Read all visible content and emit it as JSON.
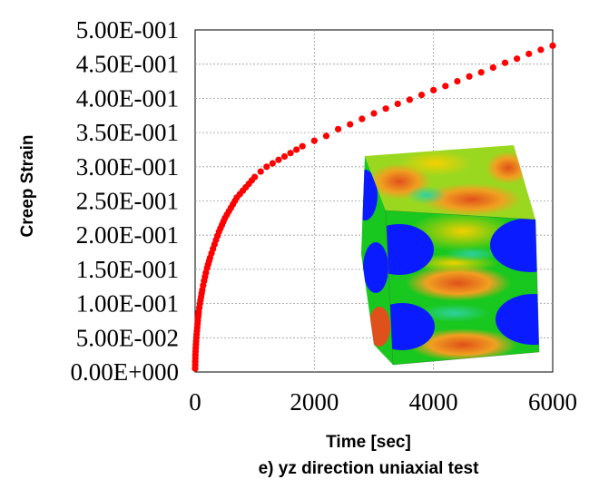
{
  "chart_data": {
    "type": "scatter",
    "title": "",
    "caption": "e) yz direction uniaxial test",
    "xlabel": "Time [sec]",
    "ylabel": "Creep Strain",
    "xlim": [
      0,
      6000
    ],
    "ylim": [
      0,
      0.5
    ],
    "x_ticks": [
      0,
      2000,
      4000,
      6000
    ],
    "x_tick_labels": [
      "0",
      "2000",
      "4000",
      "6000"
    ],
    "y_ticks": [
      0,
      0.05,
      0.1,
      0.15,
      0.2,
      0.25,
      0.3,
      0.35,
      0.4,
      0.45,
      0.5
    ],
    "y_tick_labels": [
      "0.00E+000",
      "5.00E-002",
      "1.00E-001",
      "1.50E-001",
      "2.00E-001",
      "2.50E-001",
      "3.00E-001",
      "3.50E-001",
      "4.00E-001",
      "4.50E-001",
      "5.00E-001"
    ],
    "grid": true,
    "legend": "none",
    "marker_color": "#ff0000",
    "series": [
      {
        "x": [
          0,
          2,
          5,
          10,
          20,
          30,
          40,
          50,
          60,
          80,
          100,
          120,
          150,
          180,
          200,
          250,
          300,
          350,
          400,
          450,
          500,
          600,
          700,
          800,
          900,
          1000,
          1100,
          1200,
          1300,
          1400,
          1500,
          1600,
          1700,
          1800,
          2000,
          2200,
          2400,
          2600,
          2800,
          3000,
          3200,
          3400,
          3600,
          3800,
          4000,
          4200,
          4400,
          4600,
          4800,
          5000,
          5200,
          5400,
          5600,
          5800,
          6000
        ],
        "values": [
          0.005,
          0.015,
          0.025,
          0.035,
          0.05,
          0.06,
          0.07,
          0.08,
          0.088,
          0.1,
          0.11,
          0.12,
          0.133,
          0.145,
          0.152,
          0.167,
          0.18,
          0.193,
          0.205,
          0.215,
          0.225,
          0.24,
          0.255,
          0.265,
          0.275,
          0.285,
          0.293,
          0.3,
          0.305,
          0.31,
          0.315,
          0.32,
          0.325,
          0.33,
          0.338,
          0.345,
          0.355,
          0.362,
          0.37,
          0.378,
          0.385,
          0.392,
          0.398,
          0.405,
          0.412,
          0.418,
          0.425,
          0.432,
          0.438,
          0.445,
          0.452,
          0.458,
          0.465,
          0.471,
          0.477
        ]
      }
    ],
    "inset": {
      "description_icon": "fem-deformed-cube-contour",
      "colors": [
        "#0a1cff",
        "#18c81e",
        "#f4b600",
        "#e85a12",
        "#c9e000"
      ]
    }
  }
}
